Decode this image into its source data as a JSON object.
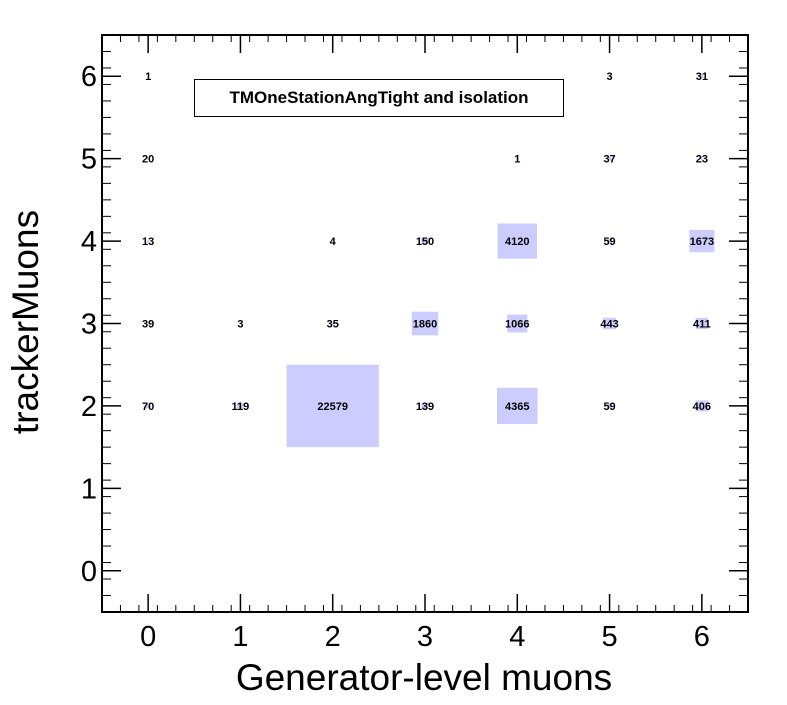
{
  "chart_data": {
    "type": "heatmap",
    "title": "",
    "xlabel": "Generator-level muons",
    "ylabel": "trackerMuons",
    "legend_text": "TMOneStationAngTight and isolation",
    "xlim": [
      -0.5,
      6.5
    ],
    "ylim": [
      -0.5,
      6.5
    ],
    "x_ticks": [
      "0",
      "1",
      "2",
      "3",
      "4",
      "5",
      "6"
    ],
    "y_ticks": [
      "0",
      "1",
      "2",
      "3",
      "4",
      "5",
      "6"
    ],
    "box_color": "#ccccff",
    "max_value": 22579,
    "cells": [
      {
        "x": 0,
        "y": 6,
        "value": 1,
        "label": "1"
      },
      {
        "x": 5,
        "y": 6,
        "value": 3,
        "label": "3"
      },
      {
        "x": 6,
        "y": 6,
        "value": 31,
        "label": "31"
      },
      {
        "x": 0,
        "y": 5,
        "value": 20,
        "label": "20"
      },
      {
        "x": 4,
        "y": 5,
        "value": 1,
        "label": "1"
      },
      {
        "x": 5,
        "y": 5,
        "value": 37,
        "label": "37"
      },
      {
        "x": 6,
        "y": 5,
        "value": 23,
        "label": "23"
      },
      {
        "x": 0,
        "y": 4,
        "value": 13,
        "label": "13"
      },
      {
        "x": 2,
        "y": 4,
        "value": 4,
        "label": "4"
      },
      {
        "x": 3,
        "y": 4,
        "value": 150,
        "label": "150"
      },
      {
        "x": 4,
        "y": 4,
        "value": 4120,
        "label": "4120"
      },
      {
        "x": 5,
        "y": 4,
        "value": 59,
        "label": "59"
      },
      {
        "x": 6,
        "y": 4,
        "value": 1673,
        "label": "1673"
      },
      {
        "x": 0,
        "y": 3,
        "value": 39,
        "label": "39"
      },
      {
        "x": 1,
        "y": 3,
        "value": 3,
        "label": "3"
      },
      {
        "x": 2,
        "y": 3,
        "value": 35,
        "label": "35"
      },
      {
        "x": 3,
        "y": 3,
        "value": 1860,
        "label": "1860"
      },
      {
        "x": 4,
        "y": 3,
        "value": 1066,
        "label": "1066"
      },
      {
        "x": 5,
        "y": 3,
        "value": 443,
        "label": "443"
      },
      {
        "x": 6,
        "y": 3,
        "value": 411,
        "label": "411"
      },
      {
        "x": 0,
        "y": 2,
        "value": 70,
        "label": "70"
      },
      {
        "x": 1,
        "y": 2,
        "value": 119,
        "label": "119"
      },
      {
        "x": 2,
        "y": 2,
        "value": 22579,
        "label": "22579"
      },
      {
        "x": 3,
        "y": 2,
        "value": 139,
        "label": "139"
      },
      {
        "x": 4,
        "y": 2,
        "value": 4365,
        "label": "4365"
      },
      {
        "x": 5,
        "y": 2,
        "value": 59,
        "label": "59"
      },
      {
        "x": 6,
        "y": 2,
        "value": 406,
        "label": "406"
      }
    ]
  }
}
